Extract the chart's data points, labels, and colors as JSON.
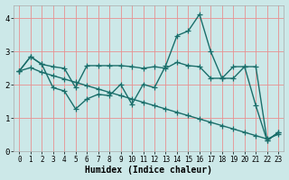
{
  "xlabel": "Humidex (Indice chaleur)",
  "bg_color": "#cce8e8",
  "line_color": "#1a6e6a",
  "grid_color": "#e89090",
  "xlim": [
    -0.5,
    23.5
  ],
  "ylim": [
    0,
    4.4
  ],
  "yticks": [
    0,
    1,
    2,
    3,
    4
  ],
  "xticks": [
    0,
    1,
    2,
    3,
    4,
    5,
    6,
    7,
    8,
    9,
    10,
    11,
    12,
    13,
    14,
    15,
    16,
    17,
    18,
    19,
    20,
    21,
    22,
    23
  ],
  "line1_x": [
    0,
    1,
    2,
    3,
    4,
    5,
    6,
    7,
    8,
    9,
    10,
    11,
    12,
    13,
    14,
    15,
    16,
    17,
    18,
    19,
    20,
    21,
    22,
    23
  ],
  "line1_y": [
    2.42,
    2.85,
    2.62,
    2.55,
    2.5,
    1.92,
    2.58,
    2.58,
    2.58,
    2.58,
    2.55,
    2.5,
    2.55,
    2.5,
    2.68,
    2.58,
    2.55,
    2.2,
    2.2,
    2.55,
    2.55,
    2.55,
    0.33,
    0.58
  ],
  "line2_x": [
    0,
    1,
    2,
    3,
    4,
    5,
    6,
    7,
    8,
    9,
    10,
    11,
    12,
    13,
    14,
    15,
    16,
    17,
    18,
    19,
    20,
    21,
    22,
    23
  ],
  "line2_y": [
    2.42,
    2.85,
    2.62,
    1.92,
    1.82,
    1.28,
    1.58,
    1.72,
    1.68,
    2.02,
    1.42,
    2.02,
    1.92,
    2.58,
    3.48,
    3.62,
    4.12,
    3.0,
    2.2,
    2.2,
    2.55,
    1.38,
    0.33,
    0.58
  ],
  "line3_x": [
    0,
    1,
    2,
    3,
    4,
    5,
    6,
    7,
    8,
    9,
    10,
    11,
    12,
    13,
    14,
    15,
    16,
    17,
    18,
    19,
    20,
    21,
    22,
    23
  ],
  "line3_y": [
    2.42,
    2.52,
    2.38,
    2.28,
    2.18,
    2.08,
    1.98,
    1.88,
    1.78,
    1.68,
    1.58,
    1.48,
    1.38,
    1.28,
    1.18,
    1.08,
    0.98,
    0.88,
    0.78,
    0.68,
    0.58,
    0.48,
    0.38,
    0.52
  ],
  "marker_size": 4,
  "linewidth": 1.0
}
